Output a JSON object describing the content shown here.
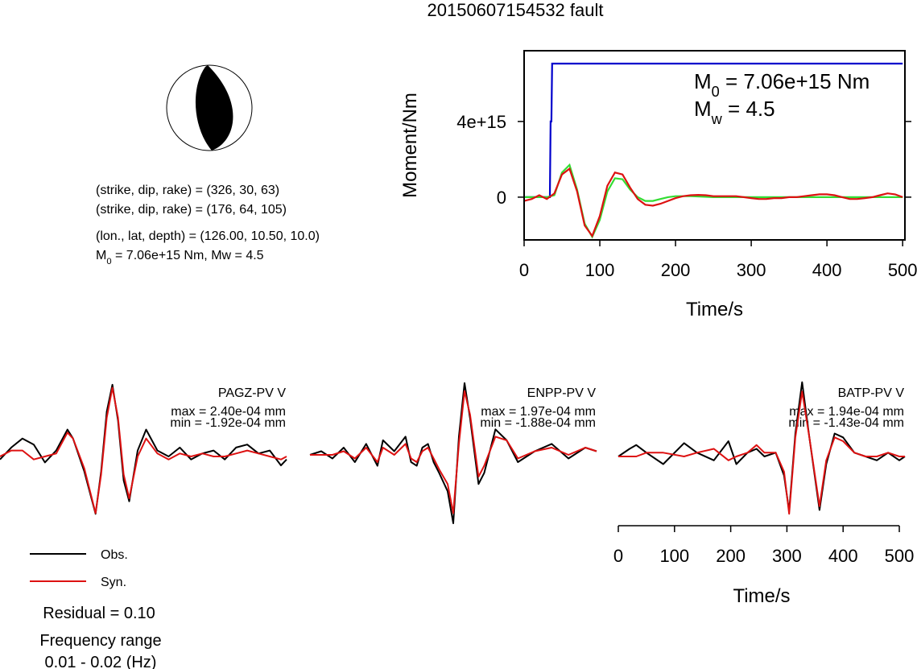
{
  "title": "20150607154532 fault",
  "info": [
    {
      "parts": [
        "(strike, dip, rake) = (326, 30, 63)"
      ]
    },
    {
      "parts": [
        "(strike, dip, rake) = (176, 64, 105)"
      ]
    },
    {
      "parts": [
        "(lon., lat, depth) = (126.00, 10.50, 10.0)"
      ]
    },
    {
      "parts": [
        "M",
        "0",
        " = 7.06e+15 Nm, Mw = 4.5"
      ]
    }
  ],
  "residual": "Residual = 0.10",
  "frequency": [
    "Frequency range",
    "0.01 - 0.02 (Hz)"
  ],
  "chart_data": [
    {
      "type": "line",
      "xlabel": "Time/s",
      "ylabel": "Moment/Nm",
      "xlim": [
        0,
        503
      ],
      "xticks": [
        0,
        100,
        200,
        300,
        400,
        500
      ],
      "ylim": [
        -2260000000000000.0,
        7740000000000000.0
      ],
      "yticks": [
        0,
        {
          "value": 4000000000000000.0,
          "label": "4e+15"
        }
      ],
      "annotations": [
        {
          "parts": [
            "M",
            "0",
            " = 7.06e+15 Nm"
          ]
        },
        {
          "parts": [
            "M",
            "w",
            " = 4.5"
          ]
        }
      ],
      "series": [
        {
          "color": "#0000cc",
          "x": [
            0,
            34,
            35,
            36,
            37,
            500
          ],
          "values": [
            0,
            0,
            4000000000000000.0,
            4000000000000000.0,
            7060000000000000.0,
            7060000000000000.0
          ]
        },
        {
          "color": "#33dd33",
          "x": [
            0,
            30,
            40,
            50,
            60,
            70,
            80,
            90,
            100,
            110,
            120,
            130,
            140,
            150,
            160,
            170,
            180,
            190,
            200,
            220,
            250,
            300,
            350,
            400,
            450,
            500
          ],
          "values": [
            0,
            0,
            100000000000000.0,
            1300000000000000.0,
            1700000000000000.0,
            400000000000000.0,
            -1400000000000000.0,
            -2100000000000000.0,
            -1200000000000000.0,
            300000000000000.0,
            1000000000000000.0,
            950000000000000.0,
            400000000000000.0,
            0,
            -200000000000000.0,
            -200000000000000.0,
            -100000000000000.0,
            0,
            50000000000000.0,
            50000000000000.0,
            0,
            0,
            0,
            0,
            0,
            0
          ]
        },
        {
          "color": "#dd1111",
          "x": [
            0,
            10,
            20,
            30,
            40,
            50,
            60,
            70,
            80,
            90,
            100,
            110,
            120,
            130,
            140,
            150,
            160,
            170,
            180,
            190,
            200,
            210,
            220,
            230,
            240,
            250,
            260,
            270,
            280,
            290,
            300,
            310,
            320,
            330,
            340,
            350,
            360,
            370,
            380,
            390,
            400,
            410,
            420,
            430,
            440,
            450,
            460,
            470,
            480,
            490,
            500
          ],
          "values": [
            -200000000000000.0,
            -100000000000000.0,
            100000000000000.0,
            -100000000000000.0,
            200000000000000.0,
            1200000000000000.0,
            1500000000000000.0,
            300000000000000.0,
            -1500000000000000.0,
            -2050000000000000.0,
            -1000000000000000.0,
            600000000000000.0,
            1300000000000000.0,
            1200000000000000.0,
            500000000000000.0,
            -100000000000000.0,
            -400000000000000.0,
            -450000000000000.0,
            -350000000000000.0,
            -200000000000000.0,
            -50000000000000.0,
            50000000000000.0,
            100000000000000.0,
            120000000000000.0,
            100000000000000.0,
            50000000000000.0,
            50000000000000.0,
            50000000000000.0,
            50000000000000.0,
            0,
            -50000000000000.0,
            -100000000000000.0,
            -100000000000000.0,
            -50000000000000.0,
            -50000000000000.0,
            0,
            0,
            50000000000000.0,
            100000000000000.0,
            150000000000000.0,
            150000000000000.0,
            100000000000000.0,
            0,
            -100000000000000.0,
            -100000000000000.0,
            -50000000000000.0,
            0,
            100000000000000.0,
            200000000000000.0,
            150000000000000.0,
            0
          ]
        }
      ]
    },
    {
      "type": "waveform",
      "station": "PAGZ-PV V",
      "max_label": "max = 2.40e-04 mm",
      "min_label": "min = -1.92e-04 mm",
      "xlim": [
        0,
        510
      ],
      "ylim": [
        -0.000256,
        0.000256
      ],
      "x": [
        0,
        20,
        40,
        60,
        80,
        100,
        120,
        130,
        150,
        170,
        180,
        190,
        200,
        210,
        220,
        230,
        245,
        260,
        280,
        300,
        320,
        340,
        360,
        380,
        400,
        420,
        440,
        460,
        480,
        500,
        510
      ],
      "series": [
        {
          "name": "Obs.",
          "color": "#000000",
          "values": [
            -1e-05,
            3e-05,
            6e-05,
            4e-05,
            -2e-05,
            2e-05,
            9e-05,
            6e-05,
            -5e-05,
            -0.000192,
            -5e-05,
            0.00015,
            0.00024,
            0.00012,
            -8e-05,
            -0.00015,
            2e-05,
            9e-05,
            2e-05,
            0,
            3e-05,
            -1e-05,
            1e-05,
            2e-05,
            -1e-05,
            3e-05,
            4e-05,
            1e-05,
            2e-05,
            -3e-05,
            -1e-05
          ]
        },
        {
          "name": "Syn.",
          "color": "#dd1111",
          "values": [
            0,
            2e-05,
            2e-05,
            -1e-05,
            0,
            1e-05,
            8e-05,
            6e-05,
            -4e-05,
            -0.00019,
            -6e-05,
            0.00013,
            0.00023,
            0.00013,
            -6e-05,
            -0.00014,
            0,
            6e-05,
            1e-05,
            -1e-05,
            1e-05,
            0,
            1e-05,
            0,
            0,
            1e-05,
            2e-05,
            1e-05,
            0,
            -1e-05,
            0
          ]
        }
      ]
    },
    {
      "type": "waveform",
      "station": "ENPP-PV V",
      "max_label": "max = 1.97e-04 mm",
      "min_label": "min = -1.88e-04 mm",
      "xlim": [
        0,
        510
      ],
      "ylim": [
        -0.00021,
        0.00021
      ],
      "x": [
        0,
        20,
        40,
        60,
        80,
        100,
        120,
        130,
        150,
        170,
        180,
        190,
        200,
        210,
        220,
        230,
        245,
        255,
        265,
        275,
        285,
        300,
        310,
        330,
        350,
        370,
        400,
        430,
        460,
        490,
        510
      ],
      "series": [
        {
          "color": "#000000",
          "values": [
            0,
            1e-05,
            -1e-05,
            2e-05,
            -2e-05,
            3e-05,
            -3e-05,
            4e-05,
            1e-05,
            5e-05,
            -2e-05,
            -3e-05,
            2e-05,
            3e-05,
            -2e-05,
            -5e-05,
            -0.0001,
            -0.000188,
            5e-05,
            0.000197,
            0.0001,
            -8e-05,
            -5e-05,
            7e-05,
            4e-05,
            -2e-05,
            1e-05,
            3e-05,
            -1e-05,
            2e-05,
            1e-05
          ]
        },
        {
          "color": "#dd1111",
          "values": [
            0,
            0,
            0,
            1e-05,
            -1e-05,
            2e-05,
            -2e-05,
            2e-05,
            0,
            3e-05,
            -1e-05,
            -2e-05,
            1e-05,
            2e-05,
            -1e-05,
            -4e-05,
            -8e-05,
            -0.00016,
            3e-05,
            0.000175,
            0.00011,
            -6e-05,
            -3e-05,
            5e-05,
            4e-05,
            -1e-05,
            1e-05,
            2e-05,
            0,
            2e-05,
            1e-05
          ]
        }
      ]
    },
    {
      "type": "waveform",
      "station": "BATP-PV V",
      "max_label": "max = 1.94e-04 mm",
      "min_label": "min = -1.43e-04 mm",
      "xlim": [
        0,
        510
      ],
      "ylim": [
        -0.0002,
        0.0002
      ],
      "xticks": [
        0,
        100,
        200,
        300,
        400,
        500
      ],
      "xlabel": "Time/s",
      "x": [
        0,
        20,
        32,
        50,
        80,
        117,
        140,
        170,
        196,
        210,
        230,
        246,
        260,
        280,
        295,
        304,
        315,
        327,
        340,
        358,
        370,
        385,
        400,
        420,
        440,
        460,
        480,
        500,
        510
      ],
      "series": [
        {
          "color": "#000000",
          "values": [
            0,
            2e-05,
            3e-05,
            1e-05,
            -2e-05,
            3.5e-05,
            1e-05,
            -1e-05,
            4e-05,
            -2e-05,
            1e-05,
            2e-05,
            0,
            1e-05,
            -5e-05,
            -0.000143,
            6e-05,
            0.000194,
            5e-05,
            -0.00014,
            -2e-05,
            6e-05,
            5e-05,
            1e-05,
            0,
            -1e-05,
            1e-05,
            -1e-05,
            0
          ]
        },
        {
          "color": "#dd1111",
          "values": [
            0,
            0,
            0,
            1e-05,
            1e-05,
            0,
            1e-05,
            2e-05,
            -1e-05,
            0,
            1e-05,
            3e-05,
            1e-05,
            1e-05,
            -4e-05,
            -0.00015,
            5e-05,
            0.00017,
            5e-05,
            -0.00013,
            -1e-05,
            5e-05,
            4e-05,
            1e-05,
            0,
            0,
            1e-05,
            0,
            0
          ]
        }
      ]
    }
  ]
}
